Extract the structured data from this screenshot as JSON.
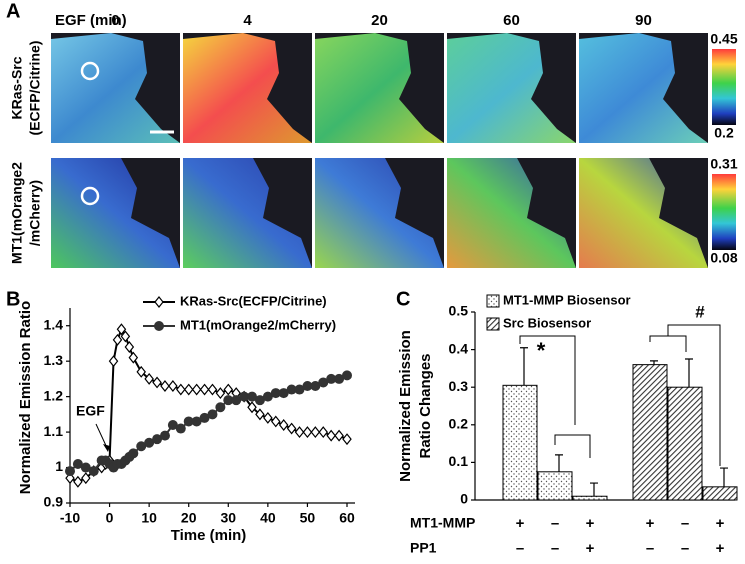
{
  "panel_a": {
    "label": "A",
    "time_label": "EGF (min)",
    "times": [
      "0",
      "4",
      "20",
      "60",
      "90"
    ],
    "rows": [
      {
        "label_lines": [
          "KRas-Src",
          "(ECFP/Citrine)"
        ],
        "colorbar_max": 0.45,
        "colorbar_min": 0.2
      },
      {
        "label_lines": [
          "MT1(mOrange2",
          "/mCherry)"
        ],
        "colorbar_max": 0.31,
        "colorbar_min": 0.08
      }
    ]
  },
  "chart_data": [
    {
      "panel": "B",
      "type": "line",
      "xlabel": "Time (min)",
      "ylabel": "Normalized Emission Ratio",
      "annotation": "EGF",
      "x": [
        -10,
        -8,
        -6,
        -4,
        -2,
        -1,
        0,
        1,
        2,
        3,
        4,
        5,
        6,
        8,
        10,
        12,
        14,
        16,
        18,
        20,
        22,
        24,
        26,
        28,
        30,
        32,
        34,
        36,
        38,
        40,
        42,
        44,
        46,
        48,
        50,
        52,
        54,
        56,
        58,
        60
      ],
      "series": [
        {
          "name": "KRas-Src(ECFP/Citrine)",
          "color": "#000000",
          "marker": "diamond",
          "values": [
            0.97,
            0.96,
            0.97,
            0.99,
            1.0,
            1.01,
            1.02,
            1.3,
            1.36,
            1.39,
            1.37,
            1.34,
            1.31,
            1.27,
            1.25,
            1.24,
            1.23,
            1.23,
            1.22,
            1.22,
            1.22,
            1.22,
            1.22,
            1.21,
            1.22,
            1.21,
            1.2,
            1.17,
            1.15,
            1.14,
            1.13,
            1.12,
            1.11,
            1.1,
            1.1,
            1.1,
            1.1,
            1.09,
            1.09,
            1.08
          ]
        },
        {
          "name": "MT1(mOrange2/mCherry)",
          "color": "#333333",
          "marker": "circle",
          "values": [
            0.99,
            1.01,
            1.0,
            0.99,
            1.02,
            1.02,
            1.01,
            1.0,
            1.01,
            1.01,
            1.02,
            1.03,
            1.04,
            1.06,
            1.07,
            1.08,
            1.09,
            1.12,
            1.11,
            1.13,
            1.13,
            1.14,
            1.15,
            1.17,
            1.19,
            1.19,
            1.2,
            1.2,
            1.19,
            1.2,
            1.21,
            1.21,
            1.22,
            1.22,
            1.23,
            1.23,
            1.24,
            1.25,
            1.25,
            1.26
          ]
        }
      ],
      "xlim": [
        -10,
        60
      ],
      "xticks": [
        -10,
        0,
        10,
        20,
        30,
        40,
        50,
        60
      ],
      "ylim": [
        0.9,
        1.45
      ],
      "yticks": [
        0.9,
        1,
        1.1,
        1.2,
        1.3,
        1.4
      ]
    },
    {
      "panel": "C",
      "type": "bar",
      "ylabel_lines": [
        "Normalized Emission",
        "Ratio Changes"
      ],
      "categories": [
        null,
        null,
        null,
        null,
        null,
        null
      ],
      "series": [
        {
          "name": "MT1-MMP Biosensor",
          "pattern": "dots",
          "values": [
            0.305,
            0.075,
            0.01,
            null,
            null,
            null
          ],
          "errors": [
            0.1,
            0.045,
            0.035,
            null,
            null,
            null
          ]
        },
        {
          "name": "Src Biosensor",
          "pattern": "hatch",
          "values": [
            null,
            null,
            null,
            0.36,
            0.3,
            0.035
          ],
          "errors": [
            null,
            null,
            null,
            0.01,
            0.075,
            0.05
          ]
        }
      ],
      "ylim": [
        0,
        0.5
      ],
      "yticks": [
        0,
        0.1,
        0.2,
        0.3,
        0.4,
        0.5
      ],
      "conditions": [
        {
          "label": "MT1-MMP",
          "marks": [
            "+",
            "–",
            "+",
            "+",
            "–",
            "+"
          ]
        },
        {
          "label": "PP1",
          "marks": [
            "–",
            "–",
            "+",
            "–",
            "–",
            "+"
          ]
        }
      ],
      "significance": [
        "*",
        "#"
      ]
    }
  ]
}
